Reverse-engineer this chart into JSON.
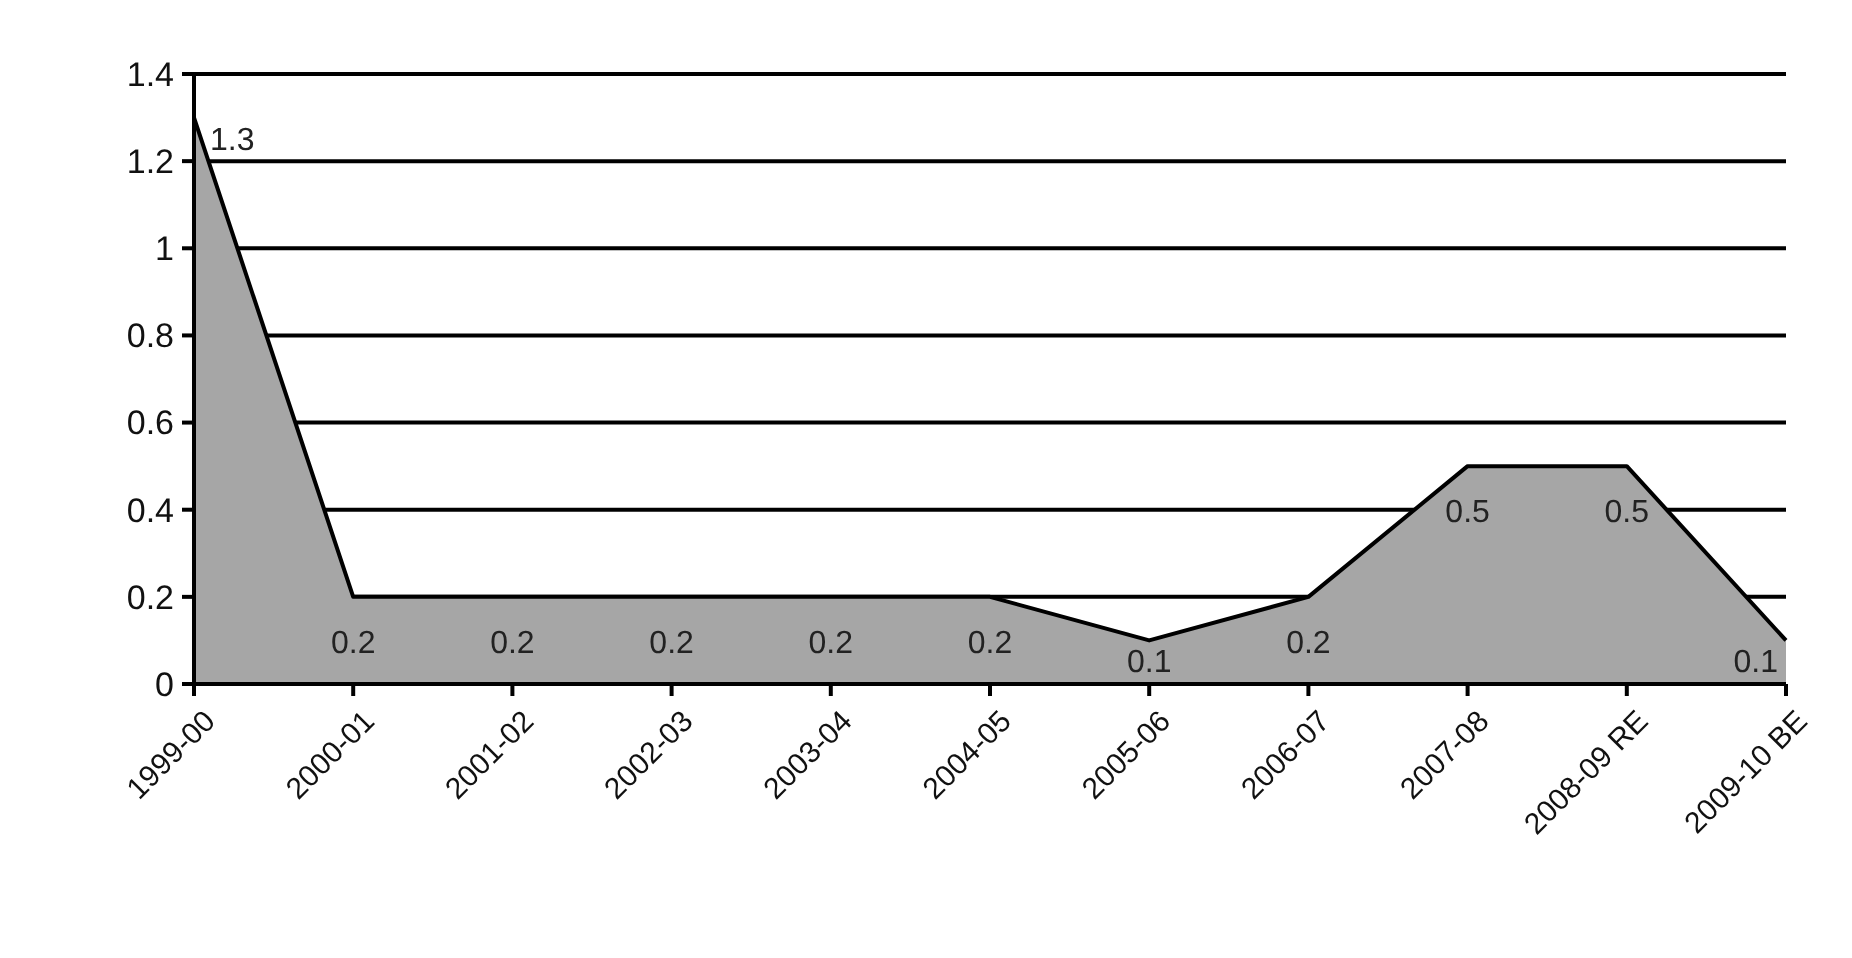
{
  "chart_data": {
    "type": "area",
    "categories": [
      "1999-00",
      "2000-01",
      "2001-02",
      "2002-03",
      "2003-04",
      "2004-05",
      "2005-06",
      "2006-07",
      "2007-08",
      "2008-09 RE",
      "2009-10 BE"
    ],
    "values": [
      1.3,
      0.2,
      0.2,
      0.2,
      0.2,
      0.2,
      0.1,
      0.2,
      0.5,
      0.5,
      0.1
    ],
    "color": "#a6a6a6",
    "ylim": [
      0,
      1.4
    ],
    "yticks": [
      0,
      0.2,
      0.4,
      0.6,
      0.8,
      1,
      1.2,
      1.4
    ],
    "grid": "y",
    "data_labels": true
  }
}
